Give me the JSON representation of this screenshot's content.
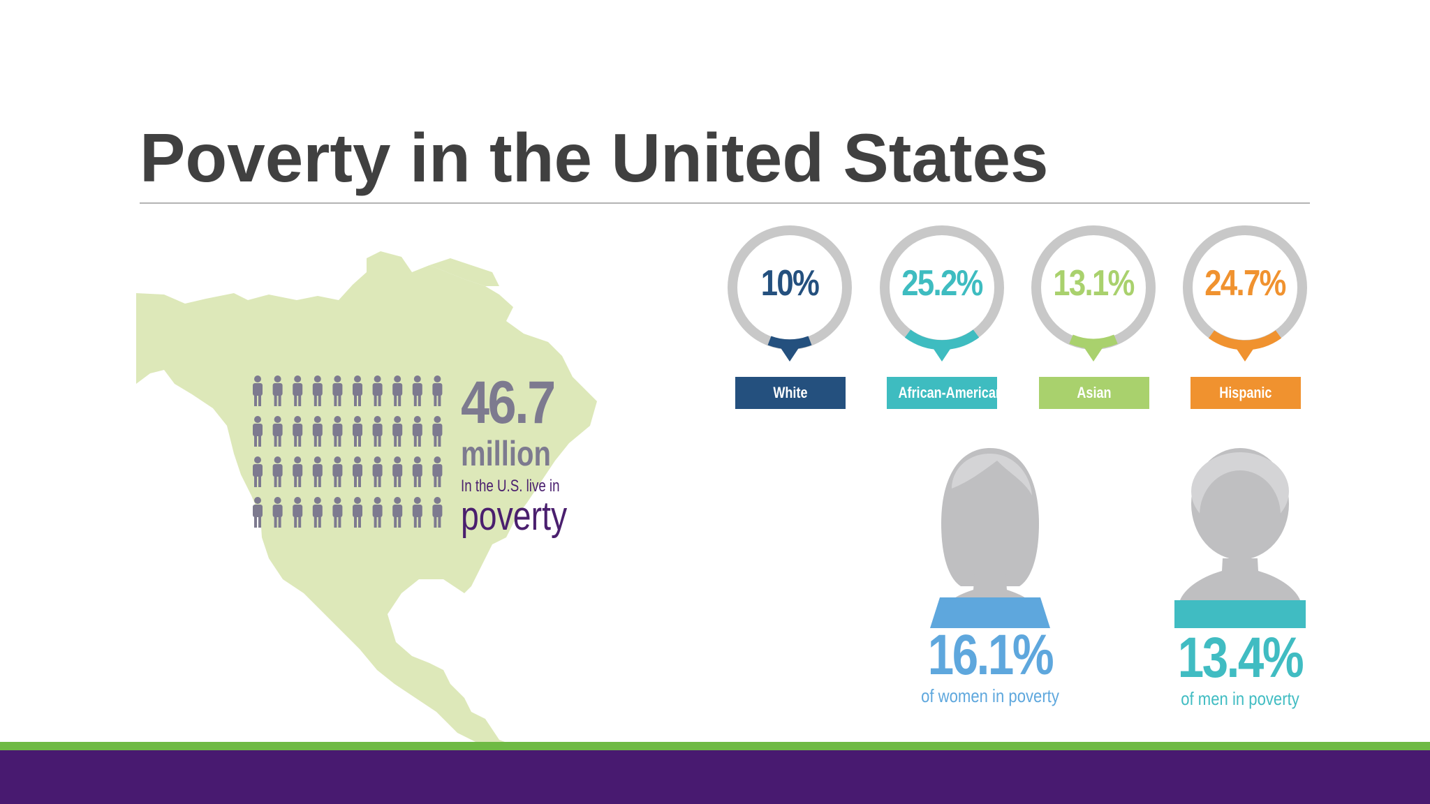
{
  "title": "Poverty in the United States",
  "colors": {
    "title": "#404040",
    "map": "#dde8b9",
    "people": "#7d7a8f",
    "poverty_text": "#4a1f6e",
    "ring_track": "#c8c8c8",
    "white": "#24507e",
    "african_american": "#3ebcc0",
    "asian": "#a9d16d",
    "hispanic": "#f0922f",
    "women": "#5ea7dd",
    "men": "#40bcc2",
    "figure_gray": "#bfbfc1",
    "band_green": "#6fba44",
    "band_purple": "#481a70"
  },
  "total": {
    "number": "46.7",
    "unit": "million",
    "subtitle": "In the U.S. live in",
    "word": "poverty"
  },
  "groups": [
    {
      "value": "10%",
      "label": "White"
    },
    {
      "value": "25.2%",
      "label": "African-American"
    },
    {
      "value": "13.1%",
      "label": "Asian"
    },
    {
      "value": "24.7%",
      "label": "Hispanic"
    }
  ],
  "women": {
    "value": "16.1%",
    "caption": "of women in poverty"
  },
  "men": {
    "value": "13.4%",
    "caption": "of men in poverty"
  }
}
